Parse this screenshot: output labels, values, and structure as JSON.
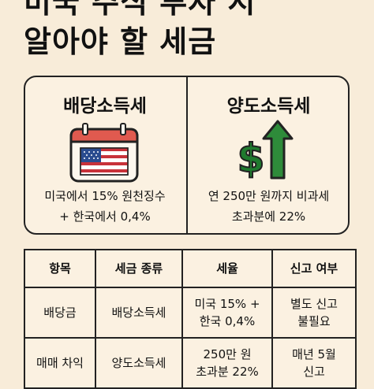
{
  "title": {
    "line1": "미국 주식 투자 시",
    "line2": "알아야 할 세금"
  },
  "cards": [
    {
      "title": "배당소득세",
      "icon": "us-flag-calendar-icon",
      "desc_line1": "미국에서 15% 원천징수",
      "desc_line2": "+ 한국에서 0,4%"
    },
    {
      "title": "양도소득세",
      "icon": "dollar-up-arrow-icon",
      "desc_line1": "연 250만 원까지 비과세",
      "desc_line2": "초과분에 22%"
    }
  ],
  "table": {
    "headers": [
      "항목",
      "세금 종류",
      "세율",
      "신고 여부"
    ],
    "rows": [
      {
        "item": "배당금",
        "tax_type": "배당소득세",
        "rate_line1": "미국 15% +",
        "rate_line2": "한국 0,4%",
        "report_line1": "별도 신고",
        "report_line2": "불필요"
      },
      {
        "item": "매매 차익",
        "tax_type": "양도소득세",
        "rate_line1": "250만 원",
        "rate_line2": "초과분 22%",
        "report_line1": "매년 5월",
        "report_line2": "신고"
      }
    ]
  },
  "colors": {
    "background": "#f8ecd9",
    "arrow_green": "#2e8b3a",
    "dollar_green": "#1f7a2e",
    "flag_red": "#c8323a",
    "flag_blue": "#2a4c8f",
    "calendar_red": "#e05a4f"
  }
}
